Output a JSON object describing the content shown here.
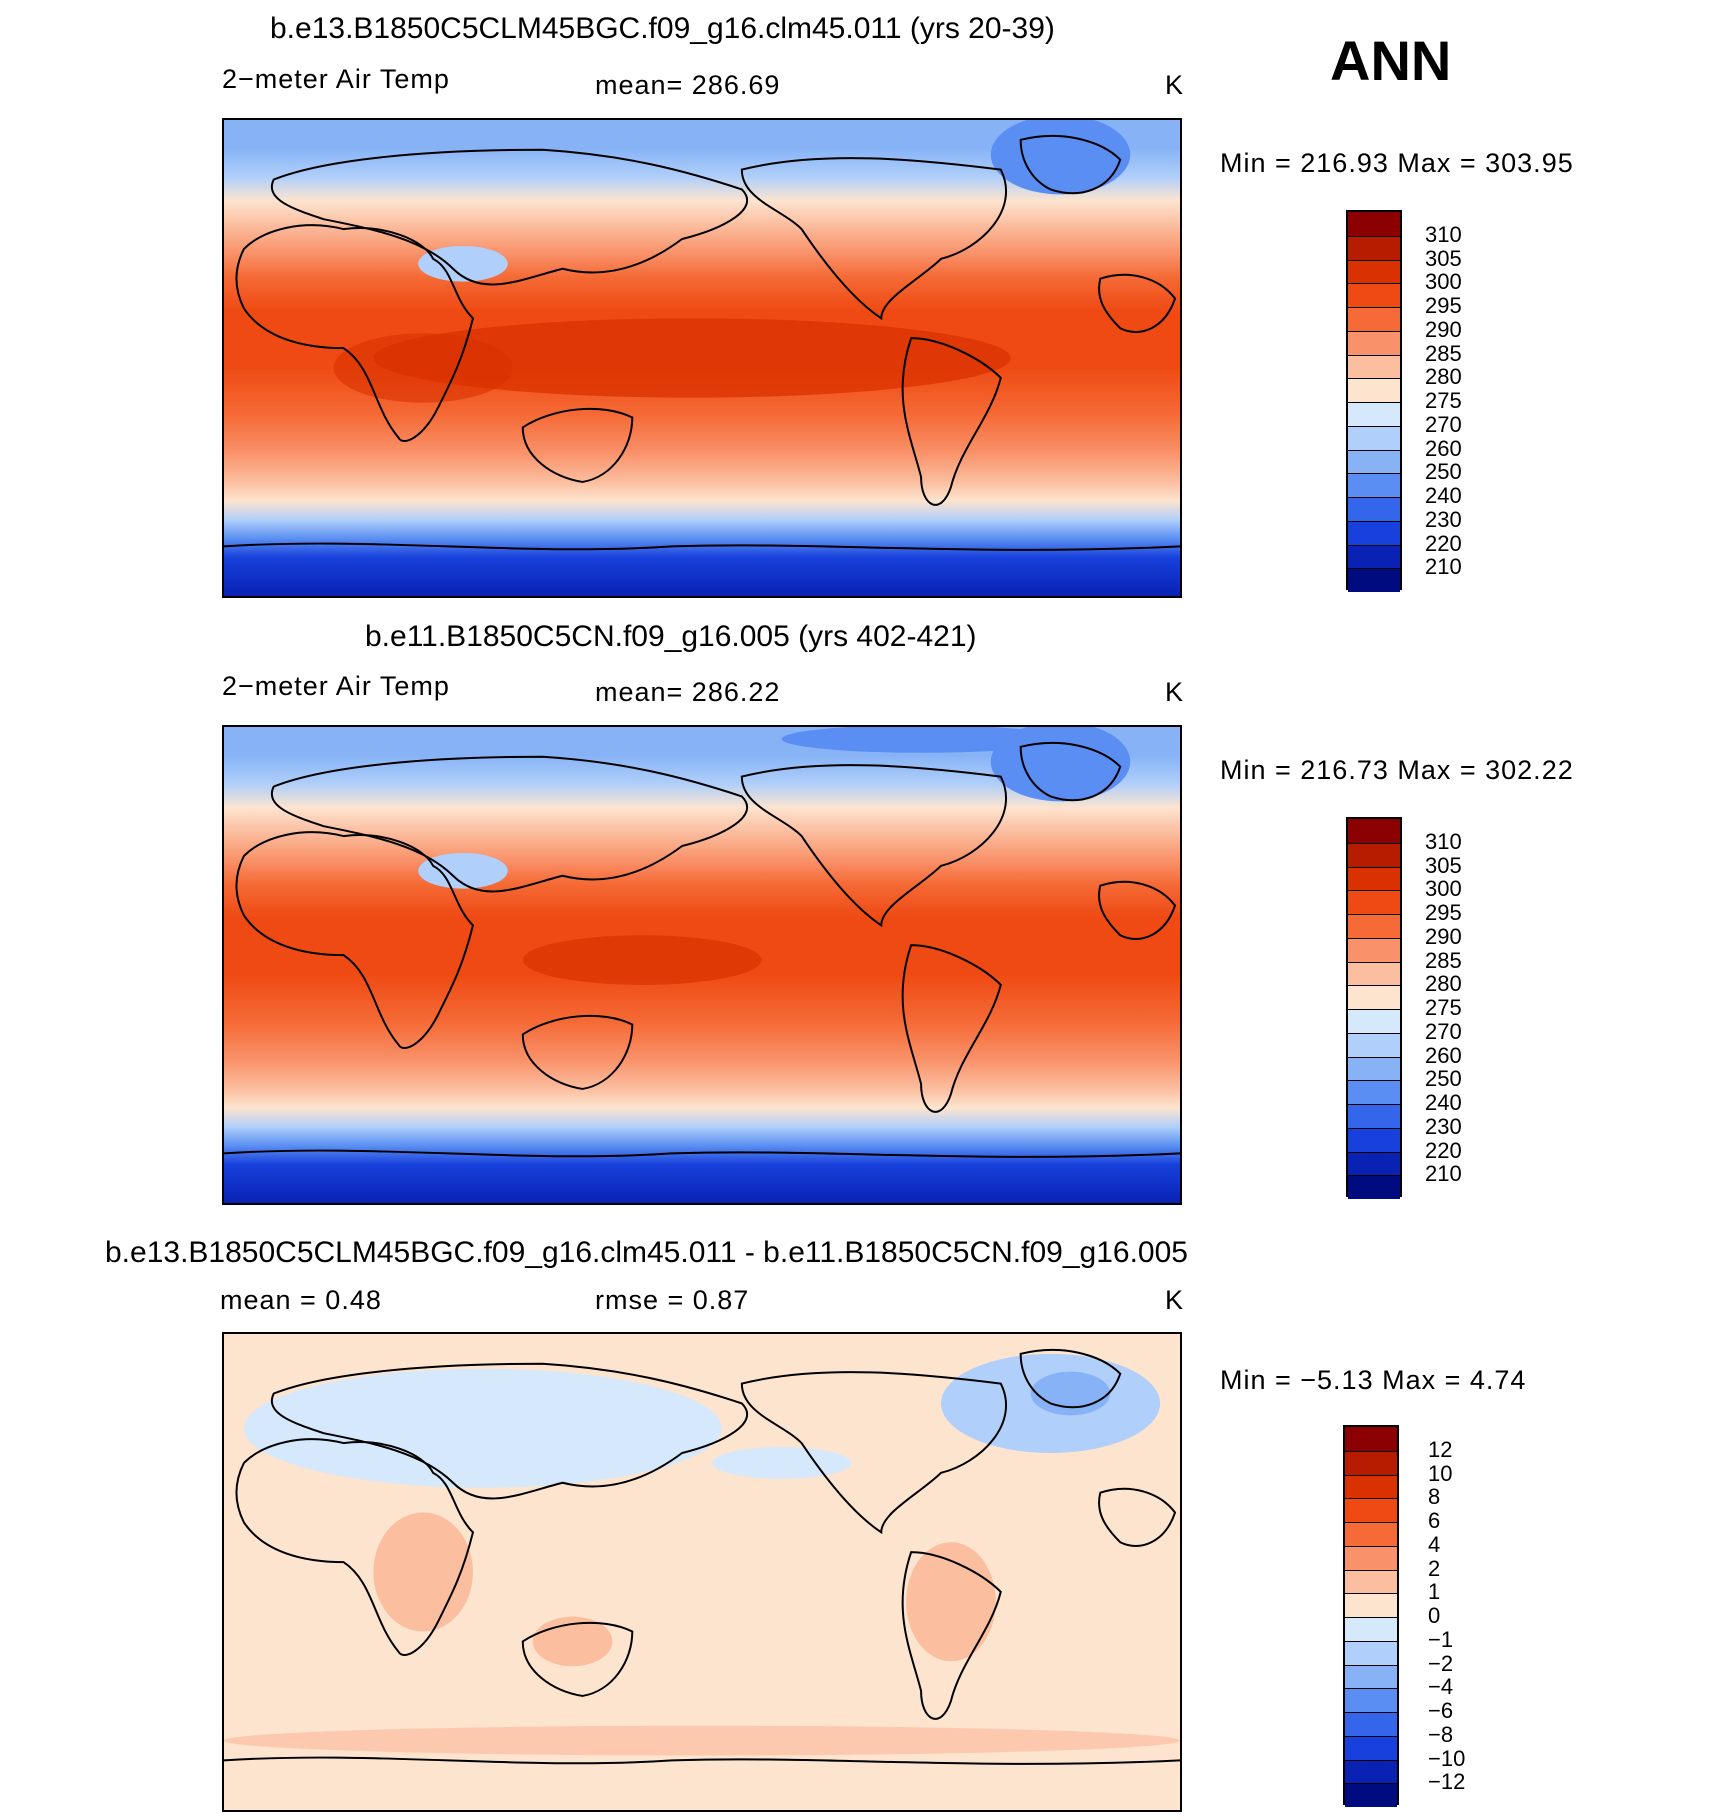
{
  "ann_label": "ANN",
  "panels": [
    {
      "title": "b.e13.B1850C5CLM45BGC.f09_g16.clm45.011 (yrs 20-39)",
      "variable": "2−meter Air Temp",
      "stat": "mean=  286.69",
      "units": "K",
      "minmax": "Min  =  216.93  Max  =  303.95",
      "colorbar": {
        "labels": [
          "310",
          "305",
          "300",
          "295",
          "290",
          "285",
          "280",
          "275",
          "270",
          "260",
          "250",
          "240",
          "230",
          "220",
          "210"
        ],
        "colors": [
          "#8b0000",
          "#b81c00",
          "#d93200",
          "#ef4a14",
          "#f56a36",
          "#f9926a",
          "#fbbe9f",
          "#fde4cf",
          "#d6e8fb",
          "#b0cffa",
          "#87b3f6",
          "#5a8ef2",
          "#3466ec",
          "#1740dc",
          "#0a22b4",
          "#000b80"
        ]
      }
    },
    {
      "title": "b.e11.B1850C5CN.f09_g16.005 (yrs 402-421)",
      "variable": "2−meter Air Temp",
      "stat": "mean=  286.22",
      "units": "K",
      "minmax": "Min  =  216.73  Max  =  302.22",
      "colorbar": {
        "labels": [
          "310",
          "305",
          "300",
          "295",
          "290",
          "285",
          "280",
          "275",
          "270",
          "260",
          "250",
          "240",
          "230",
          "220",
          "210"
        ],
        "colors": [
          "#8b0000",
          "#b81c00",
          "#d93200",
          "#ef4a14",
          "#f56a36",
          "#f9926a",
          "#fbbe9f",
          "#fde4cf",
          "#d6e8fb",
          "#b0cffa",
          "#87b3f6",
          "#5a8ef2",
          "#3466ec",
          "#1740dc",
          "#0a22b4",
          "#000b80"
        ]
      }
    },
    {
      "title": "b.e13.B1850C5CLM45BGC.f09_g16.clm45.011 - b.e11.B1850C5CN.f09_g16.005",
      "stat_mean": "mean  =      0.48",
      "stat_rmse": "rmse  =      0.87",
      "units": "K",
      "minmax": "Min  =    −5.13  Max  =      4.74",
      "colorbar": {
        "labels": [
          "12",
          "10",
          "8",
          "6",
          "4",
          "2",
          "1",
          "0",
          "−1",
          "−2",
          "−4",
          "−6",
          "−8",
          "−10",
          "−12"
        ],
        "colors": [
          "#8b0000",
          "#b81c00",
          "#d93200",
          "#ef4a14",
          "#f56a36",
          "#f9926a",
          "#fbbe9f",
          "#fde4cf",
          "#d6e8fb",
          "#b0cffa",
          "#87b3f6",
          "#5a8ef2",
          "#3466ec",
          "#1740dc",
          "#0a22b4",
          "#000b80"
        ]
      }
    }
  ]
}
